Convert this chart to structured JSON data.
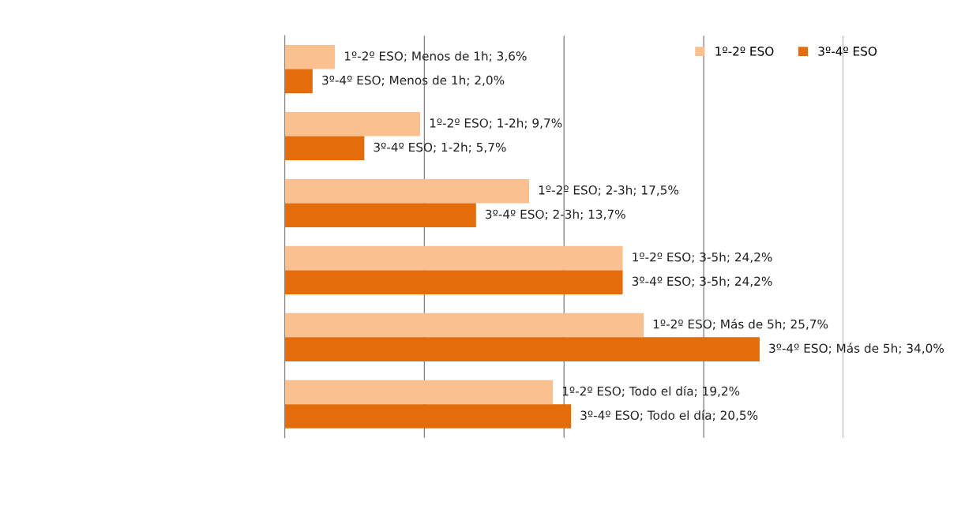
{
  "chart_data": {
    "type": "bar",
    "orientation": "horizontal",
    "categories": [
      null,
      null,
      null,
      null,
      null,
      null
    ],
    "series": [
      {
        "name": "1º-2º ESO",
        "color": "#fac090",
        "values": [
          3.6,
          9.7,
          17.5,
          24.2,
          25.7,
          19.2
        ],
        "value_labels": [
          "1º-2º ESO; Menos de 1h; 3,6%",
          "1º-2º ESO; 1-2h; 9,7%",
          "1º-2º ESO; 2-3h; 17,5%",
          "1º-2º ESO; 3-5h; 24,2%",
          "1º-2º ESO; Más de 5h; 25,7%",
          "1º-2º ESO; Todo el día; 19,2%"
        ]
      },
      {
        "name": "3º-4º ESO",
        "color": "#e46c0a",
        "values": [
          2.0,
          5.7,
          13.7,
          24.2,
          34.0,
          20.5
        ],
        "value_labels": [
          "3º-4º ESO; Menos de 1h; 2,0%",
          "3º-4º ESO; 1-2h; 5,7%",
          "3º-4º ESO; 2-3h; 13,7%",
          "3º-4º ESO; 3-5h; 24,2%",
          "3º-4º ESO; Más de 5h; 34,0%",
          "3º-4º ESO; Todo el día; 20,5%"
        ]
      }
    ],
    "xlim": [
      0,
      40
    ],
    "xticks": [
      0,
      10,
      20,
      30,
      40
    ],
    "tick_labels": false,
    "grid": "x",
    "legend": "top right"
  }
}
